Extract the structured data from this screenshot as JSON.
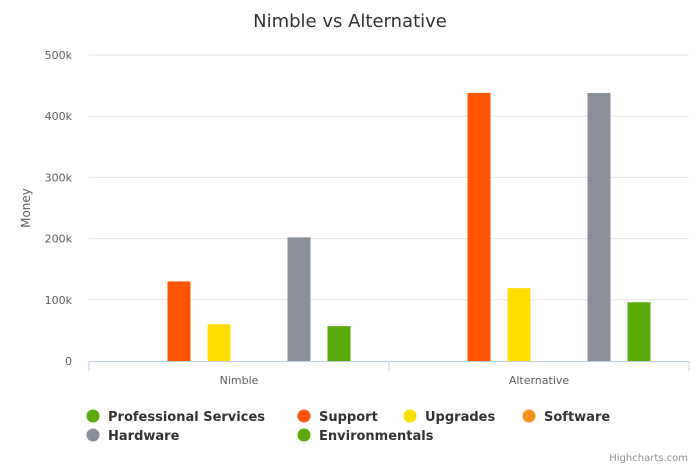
{
  "chart_data": {
    "type": "bar",
    "title": "Nimble vs Alternative",
    "ylabel": "Money",
    "xlabel": "",
    "categories": [
      "Nimble",
      "Alternative"
    ],
    "ylim": [
      0,
      500000
    ],
    "yticks": [
      {
        "value": 0,
        "label": "0"
      },
      {
        "value": 100000,
        "label": "100k"
      },
      {
        "value": 200000,
        "label": "200k"
      },
      {
        "value": 300000,
        "label": "300k"
      },
      {
        "value": 400000,
        "label": "400k"
      },
      {
        "value": 500000,
        "label": "500k"
      }
    ],
    "grid": true,
    "legend_position": "bottom-left",
    "series": [
      {
        "name": "Professional Services",
        "color": "#5aaa0a",
        "values": [
          0,
          0
        ]
      },
      {
        "name": "Support",
        "color": "#ff5500",
        "values": [
          130000,
          438000
        ]
      },
      {
        "name": "Upgrades",
        "color": "#ffdd00",
        "values": [
          60000,
          119000
        ]
      },
      {
        "name": "Software",
        "color": "#f7941d",
        "values": [
          0,
          0
        ]
      },
      {
        "name": "Hardware",
        "color": "#8a8f99",
        "values": [
          202000,
          438000
        ]
      },
      {
        "name": "Environmentals",
        "color": "#5aaa0a",
        "values": [
          57000,
          96000
        ]
      }
    ]
  },
  "credits": "Highcharts.com"
}
